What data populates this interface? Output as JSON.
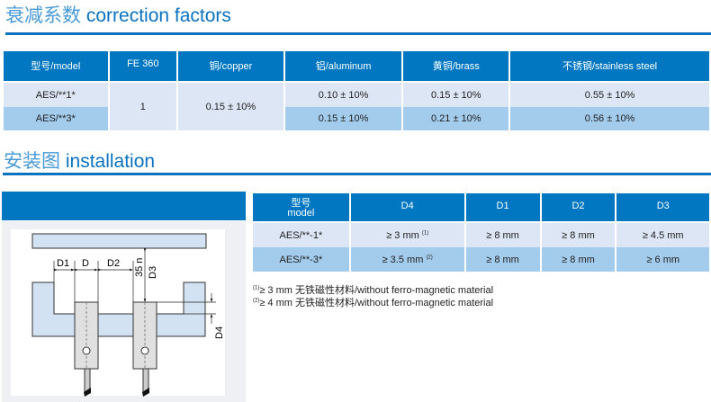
{
  "section1": {
    "title_zh": "衰减系数",
    "title_en": "correction factors"
  },
  "correction_table": {
    "headers": [
      "型号/model",
      "FE 360",
      "铜/copper",
      "铝/aluminum",
      "黄铜/brass",
      "不锈钢/stainless steel"
    ],
    "rows": [
      {
        "model": "AES/**1*",
        "fe360": "1",
        "copper": "0.15 ± 10%",
        "aluminum": "0.10 ± 10%",
        "brass": "0.15 ± 10%",
        "stainless": "0.55 ± 10%"
      },
      {
        "model": "AES/**3*",
        "aluminum": "0.15 ± 10%",
        "brass": "0.21 ± 10%",
        "stainless": "0.56 ± 10%"
      }
    ]
  },
  "section2": {
    "title_zh": "安装图",
    "title_en": "installation"
  },
  "diagram": {
    "labels": {
      "d1": "D1",
      "d": "D",
      "d2": "D2",
      "dim35": "35 n",
      "d3": "D3",
      "d4": "D4"
    }
  },
  "installation_table": {
    "headers": [
      "型号",
      "model",
      "D4",
      "D1",
      "D2",
      "D3"
    ],
    "rows": [
      {
        "model": "AES/**-1*",
        "d4": "≥ 3 mm",
        "d4_note": "(1)",
        "d1": "≥ 8 mm",
        "d2": "≥ 8 mm",
        "d3": "≥ 4.5 mm"
      },
      {
        "model": "AES/**-3*",
        "d4": "≥ 3.5 mm",
        "d4_note": "(2)",
        "d1": "≥ 8 mm",
        "d2": "≥ 8 mm",
        "d3": "≥ 6 mm"
      }
    ]
  },
  "footnotes": [
    {
      "mark": "(1)",
      "text": "≥ 3 mm 无铁磁性材料/without ferro-magnetic material"
    },
    {
      "mark": "(2)",
      "text": "≥ 4 mm 无铁磁性材料/without ferro-magnetic material"
    }
  ],
  "colors": {
    "accent": "#0077c0",
    "row_light": "#dde6f4",
    "row_dark": "#a2cbec"
  }
}
